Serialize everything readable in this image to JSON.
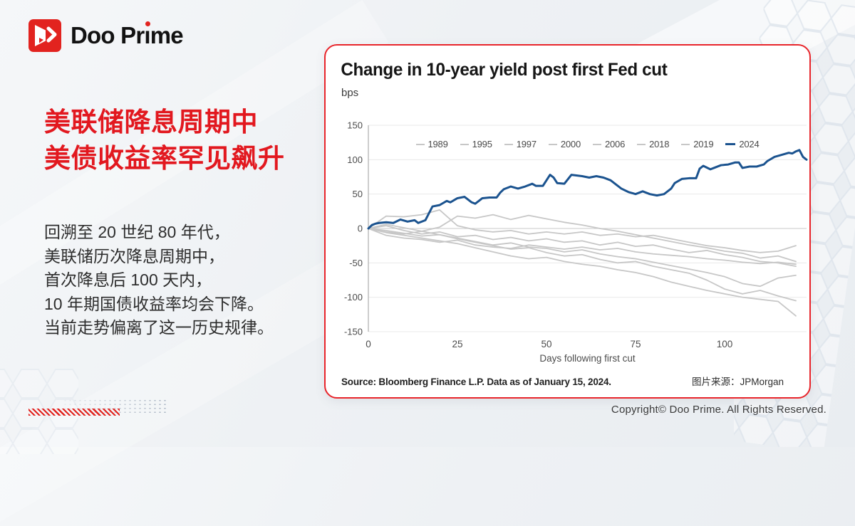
{
  "brand": {
    "name_pre": "Doo Pr",
    "name_i": "ı",
    "name_post": "me"
  },
  "left_panel": {
    "headline_line1": "美联储降息周期中",
    "headline_line2": "美债收益率罕见飙升",
    "lines": [
      "回溯至 20 世纪 80 年代，",
      "美联储历次降息周期中，",
      "首次降息后 100 天内，",
      "10 年期国债收益率均会下降。",
      "当前走势偏离了这一历史规律。"
    ]
  },
  "card": {
    "source": "Source: Bloomberg Finance L.P. Data as of January 15, 2024.",
    "credit": "图片来源：JPMorgan"
  },
  "footer": {
    "copyright": "Copyright© Doo Prime. All Rights Reserved."
  },
  "colors": {
    "brand_red": "#e2231f",
    "card_border_red": "#e8252b",
    "line_blue": "#1b538f",
    "line_gray": "#c7c7c7",
    "grid": "#e9e9e9",
    "zero_line": "#c9c9c9",
    "axis_line": "#aeaeae",
    "tick_text": "#4c4c4c"
  },
  "chart_data": {
    "type": "line",
    "title": "Change in 10-year yield post first Fed cut",
    "unit_label": "bps",
    "xlabel": "Days following first cut",
    "xlim": [
      0,
      123
    ],
    "ylim": [
      -150,
      150
    ],
    "yticks": [
      150,
      100,
      50,
      0,
      -50,
      -100,
      -150
    ],
    "xticks": [
      0,
      25,
      50,
      75,
      100
    ],
    "grid": true,
    "legend_position": "top-center",
    "series": [
      {
        "name": "1989",
        "color": "#c7c7c7",
        "width": 1.8,
        "emphasis": false,
        "x": [
          0,
          5,
          10,
          15,
          20,
          25,
          30,
          35,
          40,
          45,
          50,
          55,
          60,
          65,
          70,
          75,
          80,
          85,
          90,
          95,
          100,
          105,
          110,
          115,
          120
        ],
        "y": [
          0,
          -6,
          -10,
          -14,
          -18,
          -22,
          -28,
          -34,
          -40,
          -44,
          -42,
          -48,
          -52,
          -55,
          -60,
          -64,
          -70,
          -78,
          -84,
          -90,
          -95,
          -100,
          -103,
          -106,
          -127
        ]
      },
      {
        "name": "1995",
        "color": "#c7c7c7",
        "width": 1.8,
        "emphasis": false,
        "x": [
          0,
          5,
          10,
          15,
          20,
          25,
          30,
          35,
          40,
          45,
          50,
          55,
          60,
          65,
          70,
          75,
          80,
          85,
          90,
          95,
          100,
          105,
          110,
          115,
          120
        ],
        "y": [
          0,
          18,
          17,
          20,
          27,
          4,
          -2,
          -5,
          -3,
          -8,
          -5,
          -8,
          -5,
          -10,
          -8,
          -12,
          -10,
          -15,
          -20,
          -25,
          -28,
          -32,
          -35,
          -33,
          -25
        ]
      },
      {
        "name": "1997",
        "color": "#c7c7c7",
        "width": 1.8,
        "emphasis": false,
        "x": [
          0,
          5,
          10,
          15,
          20,
          25,
          30,
          35,
          40,
          45,
          50,
          55,
          60,
          65,
          70,
          75,
          80,
          85,
          90,
          95,
          100,
          105,
          110,
          115,
          120
        ],
        "y": [
          0,
          -10,
          -14,
          -16,
          -20,
          -17,
          -24,
          -27,
          -29,
          -24,
          -27,
          -30,
          -27,
          -31,
          -29,
          -34,
          -37,
          -39,
          -41,
          -44,
          -46,
          -49,
          -51,
          -49,
          -52
        ]
      },
      {
        "name": "2000",
        "color": "#c7c7c7",
        "width": 1.8,
        "emphasis": false,
        "x": [
          0,
          5,
          10,
          15,
          20,
          25,
          30,
          35,
          40,
          45,
          50,
          55,
          60,
          65,
          70,
          75,
          80,
          85,
          90,
          95,
          100,
          105,
          110,
          115,
          120
        ],
        "y": [
          0,
          4,
          -3,
          -8,
          -5,
          -12,
          -10,
          -16,
          -13,
          -18,
          -15,
          -20,
          -18,
          -24,
          -20,
          -26,
          -24,
          -30,
          -35,
          -32,
          -38,
          -42,
          -48,
          -50,
          -55
        ]
      },
      {
        "name": "2006",
        "color": "#c7c7c7",
        "width": 1.8,
        "emphasis": false,
        "x": [
          0,
          5,
          10,
          15,
          20,
          25,
          30,
          35,
          40,
          45,
          50,
          55,
          60,
          65,
          70,
          75,
          80,
          85,
          90,
          95,
          100,
          105,
          110,
          115,
          120
        ],
        "y": [
          0,
          6,
          1,
          -4,
          -9,
          -14,
          -19,
          -24,
          -21,
          -27,
          -29,
          -34,
          -31,
          -37,
          -41,
          -44,
          -49,
          -54,
          -59,
          -64,
          -70,
          -80,
          -84,
          -72,
          -68
        ]
      },
      {
        "name": "2018",
        "color": "#c7c7c7",
        "width": 1.8,
        "emphasis": false,
        "x": [
          0,
          5,
          10,
          15,
          20,
          25,
          30,
          35,
          40,
          45,
          50,
          55,
          60,
          65,
          70,
          75,
          80,
          85,
          90,
          95,
          100,
          105,
          110,
          115,
          120
        ],
        "y": [
          0,
          -3,
          -7,
          -11,
          -9,
          -15,
          -20,
          -25,
          -30,
          -28,
          -35,
          -40,
          -38,
          -45,
          -50,
          -48,
          -55,
          -60,
          -65,
          -75,
          -88,
          -95,
          -90,
          -98,
          -105
        ]
      },
      {
        "name": "2019",
        "color": "#c7c7c7",
        "width": 1.8,
        "emphasis": false,
        "x": [
          0,
          5,
          10,
          15,
          20,
          25,
          30,
          35,
          40,
          45,
          50,
          55,
          60,
          65,
          70,
          75,
          80,
          85,
          90,
          95,
          100,
          105,
          110,
          115,
          120
        ],
        "y": [
          0,
          -5,
          -8,
          -4,
          2,
          18,
          15,
          20,
          13,
          19,
          14,
          9,
          5,
          0,
          -4,
          -9,
          -14,
          -19,
          -24,
          -28,
          -33,
          -36,
          -43,
          -40,
          -48
        ]
      },
      {
        "name": "2024",
        "color": "#1b538f",
        "width": 3,
        "emphasis": true,
        "x": [
          0,
          1,
          2,
          3,
          5,
          7,
          9,
          11,
          13,
          14,
          16,
          17,
          18,
          20,
          22,
          23,
          25,
          27,
          29,
          30,
          32,
          34,
          36,
          37,
          38,
          40,
          42,
          44,
          46,
          47,
          49,
          50,
          51,
          52,
          53,
          55,
          57,
          60,
          62,
          64,
          66,
          68,
          70,
          71,
          73,
          75,
          77,
          79,
          81,
          83,
          85,
          86,
          88,
          90,
          92,
          93,
          94,
          96,
          97,
          99,
          101,
          103,
          104,
          105,
          107,
          109,
          111,
          112,
          113,
          114,
          116,
          118,
          119,
          120,
          121,
          122,
          123
        ],
        "y": [
          0,
          5,
          7,
          8,
          9,
          8,
          13,
          10,
          12,
          8,
          12,
          22,
          32,
          34,
          40,
          38,
          44,
          46,
          38,
          36,
          44,
          45,
          45,
          52,
          57,
          61,
          58,
          61,
          65,
          62,
          62,
          70,
          78,
          74,
          66,
          65,
          78,
          76,
          74,
          76,
          74,
          70,
          62,
          58,
          53,
          50,
          54,
          50,
          48,
          50,
          58,
          66,
          72,
          73,
          73,
          87,
          91,
          86,
          88,
          92,
          93,
          96,
          96,
          88,
          90,
          90,
          93,
          98,
          101,
          104,
          107,
          110,
          109,
          112,
          114,
          104,
          100
        ]
      }
    ]
  }
}
